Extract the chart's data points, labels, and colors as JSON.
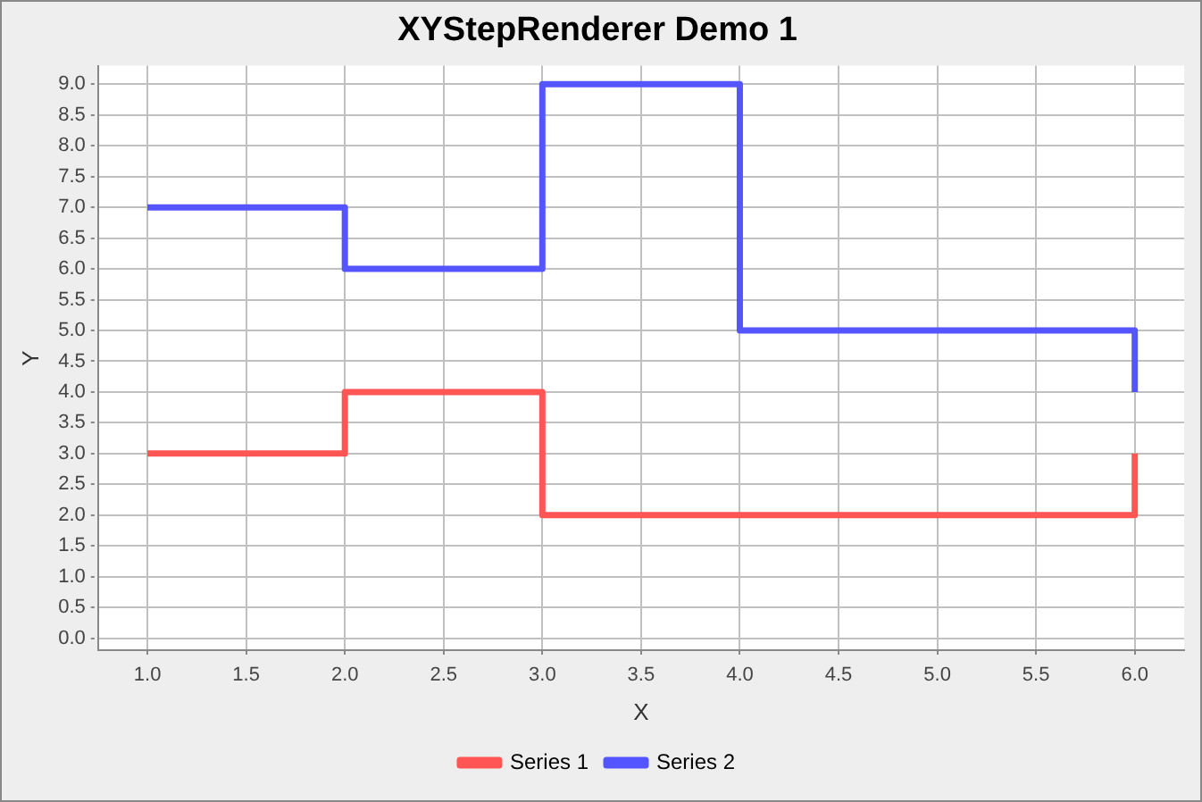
{
  "chart_data": {
    "type": "step",
    "title": "XYStepRenderer Demo 1",
    "xlabel": "X",
    "ylabel": "Y",
    "series": [
      {
        "name": "Series 1",
        "color": "#ff5555",
        "x": [
          1,
          2,
          3,
          6
        ],
        "values": [
          3,
          4,
          2,
          3
        ]
      },
      {
        "name": "Series 2",
        "color": "#5555ff",
        "x": [
          1,
          2,
          3,
          4,
          6
        ],
        "values": [
          7,
          6,
          9,
          5,
          4
        ]
      }
    ],
    "xlim": [
      0.75,
      6.25
    ],
    "ylim": [
      -0.2,
      9.3
    ],
    "xticks": [
      {
        "value": 1,
        "label": "1.0"
      },
      {
        "value": 1.5,
        "label": "1.5"
      },
      {
        "value": 2,
        "label": "2.0"
      },
      {
        "value": 2.5,
        "label": "2.5"
      },
      {
        "value": 3,
        "label": "3.0"
      },
      {
        "value": 3.5,
        "label": "3.5"
      },
      {
        "value": 4,
        "label": "4.0"
      },
      {
        "value": 4.5,
        "label": "4.5"
      },
      {
        "value": 5,
        "label": "5.0"
      },
      {
        "value": 5.5,
        "label": "5.5"
      },
      {
        "value": 6,
        "label": "6.0"
      }
    ],
    "yticks": [
      {
        "value": 0,
        "label": "0.0"
      },
      {
        "value": 0.5,
        "label": "0.5"
      },
      {
        "value": 1,
        "label": "1.0"
      },
      {
        "value": 1.5,
        "label": "1.5"
      },
      {
        "value": 2,
        "label": "2.0"
      },
      {
        "value": 2.5,
        "label": "2.5"
      },
      {
        "value": 3,
        "label": "3.0"
      },
      {
        "value": 3.5,
        "label": "3.5"
      },
      {
        "value": 4,
        "label": "4.0"
      },
      {
        "value": 4.5,
        "label": "4.5"
      },
      {
        "value": 5,
        "label": "5.0"
      },
      {
        "value": 5.5,
        "label": "5.5"
      },
      {
        "value": 6,
        "label": "6.0"
      },
      {
        "value": 6.5,
        "label": "6.5"
      },
      {
        "value": 7,
        "label": "7.0"
      },
      {
        "value": 7.5,
        "label": "7.5"
      },
      {
        "value": 8,
        "label": "8.0"
      },
      {
        "value": 8.5,
        "label": "8.5"
      },
      {
        "value": 9,
        "label": "9.0"
      }
    ],
    "grid": true,
    "legend": "bottom",
    "marker": "none",
    "line_style": "solid"
  }
}
